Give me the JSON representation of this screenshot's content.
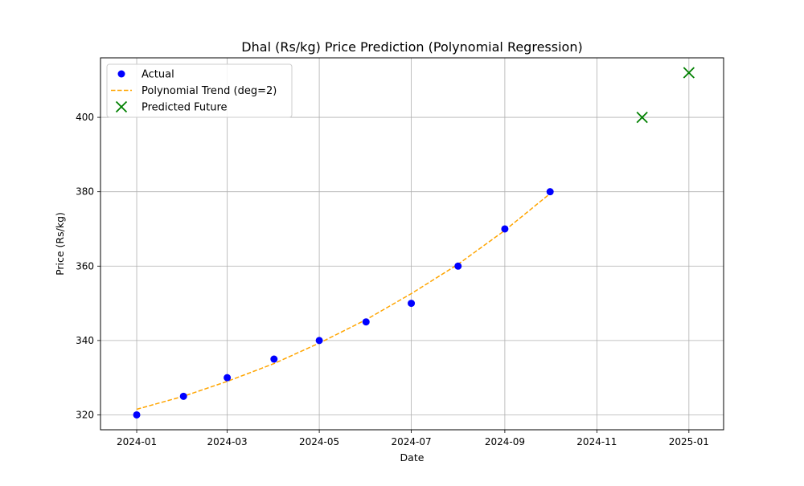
{
  "chart_data": {
    "type": "scatter",
    "title": "Dhal (Rs/kg) Price Prediction (Polynomial Regression)",
    "xlabel": "Date",
    "ylabel": "Price (Rs/kg)",
    "x_axis_type": "date",
    "xlim": [
      "2023-12-08",
      "2025-01-24"
    ],
    "ylim": [
      316,
      416
    ],
    "x_ticks": [
      "2024-01",
      "2024-03",
      "2024-05",
      "2024-07",
      "2024-09",
      "2024-11",
      "2025-01"
    ],
    "y_ticks": [
      320,
      340,
      360,
      380,
      400
    ],
    "grid": true,
    "legend_position": "top-left",
    "series": [
      {
        "name": "Actual",
        "kind": "scatter",
        "marker": "circle",
        "color": "#0000ff",
        "x": [
          "2024-01-01",
          "2024-02-01",
          "2024-03-01",
          "2024-04-01",
          "2024-05-01",
          "2024-06-01",
          "2024-07-01",
          "2024-08-01",
          "2024-09-01",
          "2024-10-01"
        ],
        "y": [
          320,
          325,
          330,
          335,
          340,
          345,
          350,
          360,
          370,
          380
        ]
      },
      {
        "name": "Polynomial Trend (deg=2)",
        "kind": "line",
        "style": "dashed",
        "color": "#ffa500",
        "x": [
          "2024-01-01",
          "2024-02-01",
          "2024-03-01",
          "2024-04-01",
          "2024-05-01",
          "2024-06-01",
          "2024-07-01",
          "2024-08-01",
          "2024-09-01",
          "2024-10-01"
        ],
        "y": [
          321.5,
          325.0,
          329.0,
          333.8,
          339.3,
          345.6,
          352.6,
          360.5,
          369.6,
          379.5
        ]
      },
      {
        "name": "Predicted Future",
        "kind": "scatter",
        "marker": "x",
        "color": "#008000",
        "x": [
          "2024-12-01",
          "2025-01-01"
        ],
        "y": [
          400,
          412
        ]
      }
    ]
  }
}
